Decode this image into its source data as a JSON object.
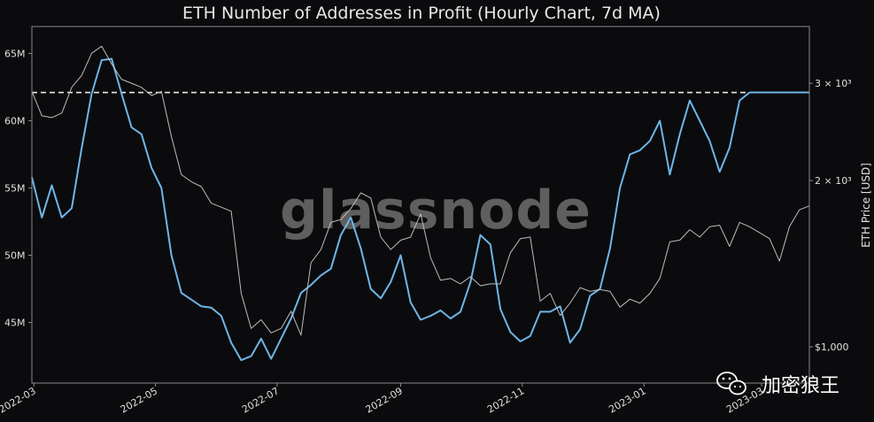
{
  "chart_data": {
    "type": "line",
    "title": "ETH Number of Addresses in Profit (Hourly Chart, 7d MA)",
    "xlabel": "",
    "ylabel": "",
    "y2label": "ETH Price [USD]",
    "x_ticks": [
      "2022-03",
      "2022-05",
      "2022-07",
      "2022-09",
      "2022-11",
      "2023-01",
      "2023-03"
    ],
    "y_ticks": [
      {
        "value": 45,
        "label": "45M"
      },
      {
        "value": 50,
        "label": "50M"
      },
      {
        "value": 55,
        "label": "55M"
      },
      {
        "value": 60,
        "label": "60M"
      },
      {
        "value": 65,
        "label": "65M"
      }
    ],
    "y_range_millions": [
      40.5,
      67
    ],
    "y2_ticks": [
      {
        "value": 1000,
        "label": "$1,000"
      },
      {
        "value": 2000,
        "label": "2 × 10³"
      },
      {
        "value": 3000,
        "label": "3 × 10³"
      }
    ],
    "y2_scale": "log",
    "y2_range_usd": [
      860,
      3800
    ],
    "reference_line": {
      "series": "addresses",
      "value_millions": 62.1,
      "style": "dashed",
      "color": "#e8e8e8"
    },
    "grid": false,
    "series": [
      {
        "key": "addresses",
        "axis": "left",
        "unit": "millions",
        "color": "#6db6e8",
        "x": [
          "2022-02-28",
          "2022-03-05",
          "2022-03-10",
          "2022-03-15",
          "2022-03-20",
          "2022-03-25",
          "2022-03-30",
          "2022-04-04",
          "2022-04-09",
          "2022-04-14",
          "2022-04-19",
          "2022-04-24",
          "2022-04-29",
          "2022-05-04",
          "2022-05-09",
          "2022-05-14",
          "2022-05-19",
          "2022-05-24",
          "2022-05-29",
          "2022-06-03",
          "2022-06-08",
          "2022-06-13",
          "2022-06-18",
          "2022-06-23",
          "2022-06-28",
          "2022-07-03",
          "2022-07-08",
          "2022-07-13",
          "2022-07-18",
          "2022-07-23",
          "2022-07-28",
          "2022-08-02",
          "2022-08-07",
          "2022-08-12",
          "2022-08-17",
          "2022-08-22",
          "2022-08-27",
          "2022-09-01",
          "2022-09-06",
          "2022-09-11",
          "2022-09-16",
          "2022-09-21",
          "2022-09-26",
          "2022-10-01",
          "2022-10-06",
          "2022-10-11",
          "2022-10-16",
          "2022-10-21",
          "2022-10-26",
          "2022-10-31",
          "2022-11-05",
          "2022-11-10",
          "2022-11-15",
          "2022-11-20",
          "2022-11-25",
          "2022-11-30",
          "2022-12-05",
          "2022-12-10",
          "2022-12-15",
          "2022-12-20",
          "2022-12-25",
          "2022-12-30",
          "2023-01-04",
          "2023-01-09",
          "2023-01-14",
          "2023-01-19",
          "2023-01-24",
          "2023-01-29",
          "2023-02-03",
          "2023-02-08",
          "2023-02-13",
          "2023-02-18",
          "2023-02-23",
          "2023-02-28",
          "2023-03-05",
          "2023-03-10",
          "2023-03-15",
          "2023-03-20",
          "2023-03-25"
        ],
        "values": [
          55.8,
          52.8,
          55.2,
          52.8,
          53.5,
          58.0,
          62.0,
          64.5,
          64.6,
          62.0,
          59.5,
          59.0,
          56.5,
          55.0,
          50.0,
          47.2,
          46.7,
          46.2,
          46.1,
          45.5,
          43.5,
          42.2,
          42.5,
          43.8,
          42.3,
          43.8,
          45.3,
          47.2,
          47.8,
          48.5,
          49.0,
          51.5,
          52.8,
          50.5,
          47.5,
          46.8,
          48.0,
          50.0,
          46.5,
          45.2,
          45.5,
          45.9,
          45.3,
          45.8,
          48.0,
          51.5,
          50.8,
          46.0,
          44.3,
          43.6,
          44.0,
          45.8,
          45.8,
          46.2,
          43.5,
          44.5,
          47.0,
          47.5,
          50.5,
          55.0,
          57.5,
          57.8,
          58.5,
          60.0,
          56.0,
          59.0,
          61.5,
          60.0,
          58.5,
          56.2,
          58.0,
          61.5,
          62.1,
          62.1,
          62.1,
          62.1,
          62.1,
          62.1,
          62.1
        ]
      },
      {
        "key": "eth_price",
        "axis": "right",
        "unit": "USD",
        "color": "#bdbdbd",
        "x": [
          "2022-02-28",
          "2022-03-05",
          "2022-03-10",
          "2022-03-15",
          "2022-03-20",
          "2022-03-25",
          "2022-03-30",
          "2022-04-04",
          "2022-04-09",
          "2022-04-14",
          "2022-04-19",
          "2022-04-24",
          "2022-04-29",
          "2022-05-04",
          "2022-05-09",
          "2022-05-14",
          "2022-05-19",
          "2022-05-24",
          "2022-05-29",
          "2022-06-03",
          "2022-06-08",
          "2022-06-13",
          "2022-06-18",
          "2022-06-23",
          "2022-06-28",
          "2022-07-03",
          "2022-07-08",
          "2022-07-13",
          "2022-07-18",
          "2022-07-23",
          "2022-07-28",
          "2022-08-02",
          "2022-08-07",
          "2022-08-12",
          "2022-08-17",
          "2022-08-22",
          "2022-08-27",
          "2022-09-01",
          "2022-09-06",
          "2022-09-11",
          "2022-09-16",
          "2022-09-21",
          "2022-09-26",
          "2022-10-01",
          "2022-10-06",
          "2022-10-11",
          "2022-10-16",
          "2022-10-21",
          "2022-10-26",
          "2022-10-31",
          "2022-11-05",
          "2022-11-10",
          "2022-11-15",
          "2022-11-20",
          "2022-11-25",
          "2022-11-30",
          "2022-12-05",
          "2022-12-10",
          "2022-12-15",
          "2022-12-20",
          "2022-12-25",
          "2022-12-30",
          "2023-01-04",
          "2023-01-09",
          "2023-01-14",
          "2023-01-19",
          "2023-01-24",
          "2023-01-29",
          "2023-02-03",
          "2023-02-08",
          "2023-02-13",
          "2023-02-18",
          "2023-02-23",
          "2023-02-28",
          "2023-03-05",
          "2023-03-10",
          "2023-03-15",
          "2023-03-20",
          "2023-03-25"
        ],
        "values": [
          2900,
          2620,
          2600,
          2650,
          2950,
          3100,
          3400,
          3500,
          3250,
          3050,
          3000,
          2950,
          2850,
          2900,
          2400,
          2050,
          1990,
          1950,
          1820,
          1790,
          1760,
          1250,
          1080,
          1120,
          1060,
          1080,
          1160,
          1050,
          1420,
          1500,
          1680,
          1700,
          1780,
          1900,
          1860,
          1580,
          1500,
          1560,
          1580,
          1740,
          1450,
          1320,
          1330,
          1300,
          1340,
          1290,
          1300,
          1300,
          1480,
          1570,
          1580,
          1210,
          1250,
          1140,
          1200,
          1280,
          1260,
          1270,
          1260,
          1180,
          1220,
          1200,
          1250,
          1330,
          1550,
          1560,
          1630,
          1580,
          1650,
          1660,
          1520,
          1680,
          1650,
          1610,
          1570,
          1430,
          1650,
          1770,
          1800
        ]
      }
    ]
  },
  "watermark": "glassnode",
  "badge": {
    "text": "加密狼王",
    "icon": "wechat-icon"
  },
  "colors": {
    "background": "#0b0b0d",
    "axes": "#8a8a8a",
    "addresses_line": "#6db6e8",
    "price_line": "#bdbdbd"
  }
}
